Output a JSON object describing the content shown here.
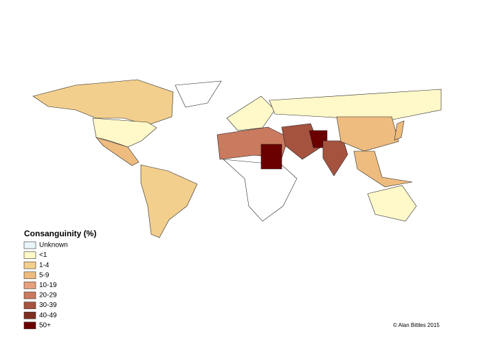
{
  "legend": {
    "title": "Consanguinity (%)",
    "items": [
      {
        "label": "Unknown",
        "color": "#eaf5fb"
      },
      {
        "label": "<1",
        "color": "#fff8c8"
      },
      {
        "label": "1-4",
        "color": "#f3cf8d"
      },
      {
        "label": "5-9",
        "color": "#eebc7f"
      },
      {
        "label": "10-19",
        "color": "#e7a07e"
      },
      {
        "label": "20-29",
        "color": "#c97a5f"
      },
      {
        "label": "30-39",
        "color": "#a5533e"
      },
      {
        "label": "40-49",
        "color": "#7d2f22"
      },
      {
        "label": "50+",
        "color": "#6b0000"
      }
    ]
  },
  "credit": "© Alan Bittles 2015"
}
